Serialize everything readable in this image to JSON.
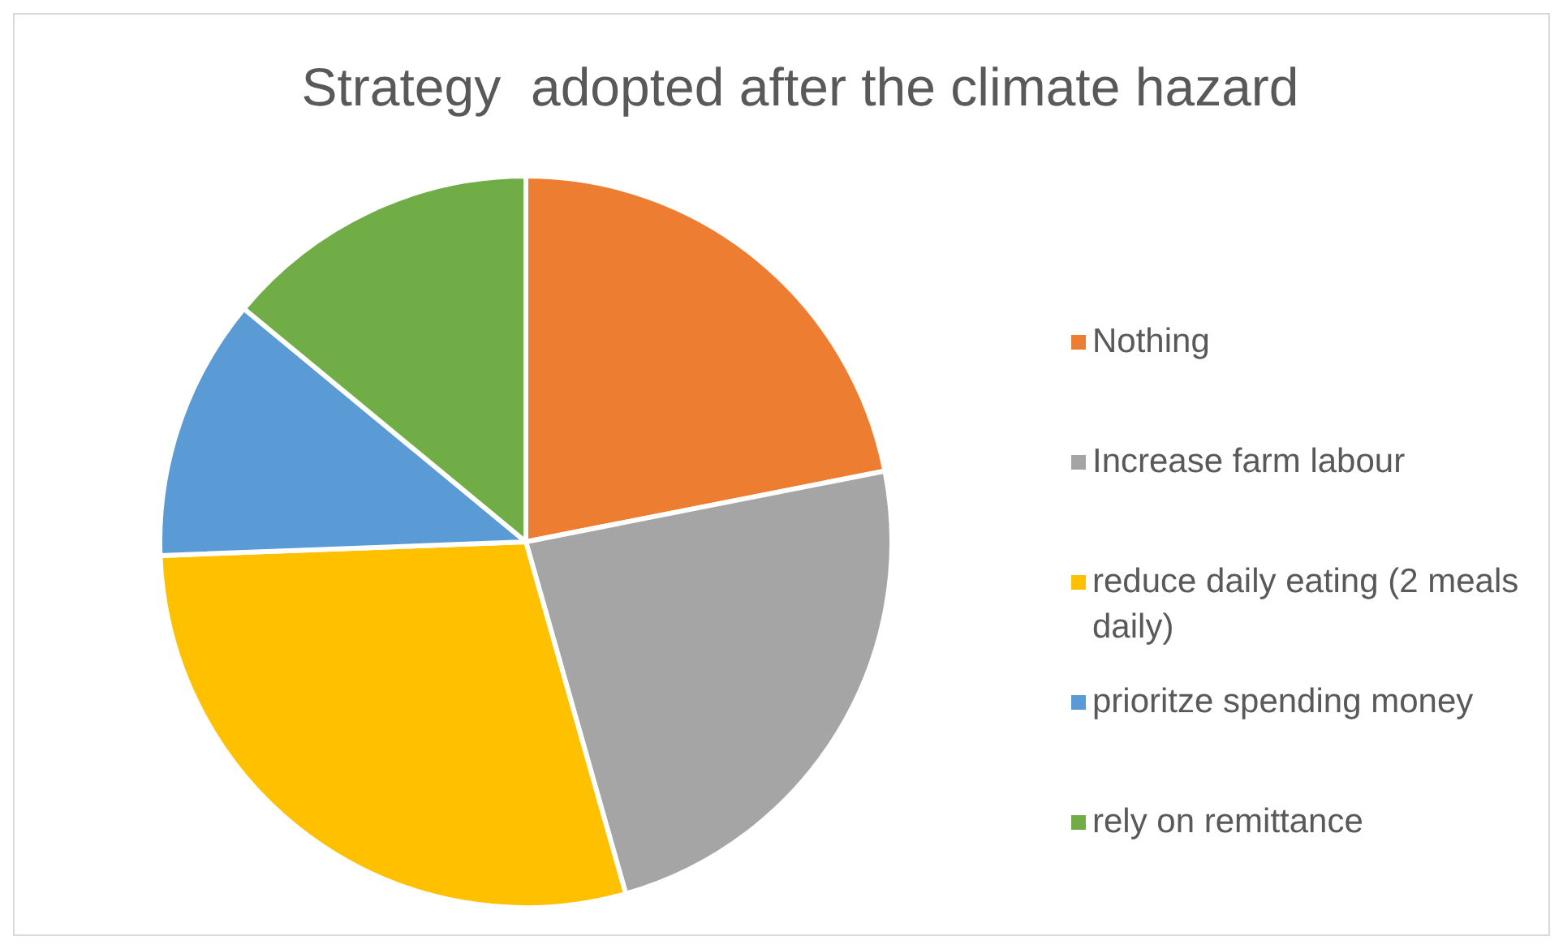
{
  "chart_data": {
    "type": "pie",
    "title": "Strategy  adopted after the climate hazard",
    "categories": [
      "Nothing",
      "Increase farm labour",
      "reduce daily eating (2 meals daily)",
      "prioritze spending money",
      "rely on remittance"
    ],
    "values": [
      21.9,
      23.7,
      28.8,
      11.6,
      14.0
    ],
    "colors": [
      "#ed7d31",
      "#a5a5a5",
      "#ffc000",
      "#5b9bd5",
      "#70ad47"
    ],
    "legend": "right"
  }
}
